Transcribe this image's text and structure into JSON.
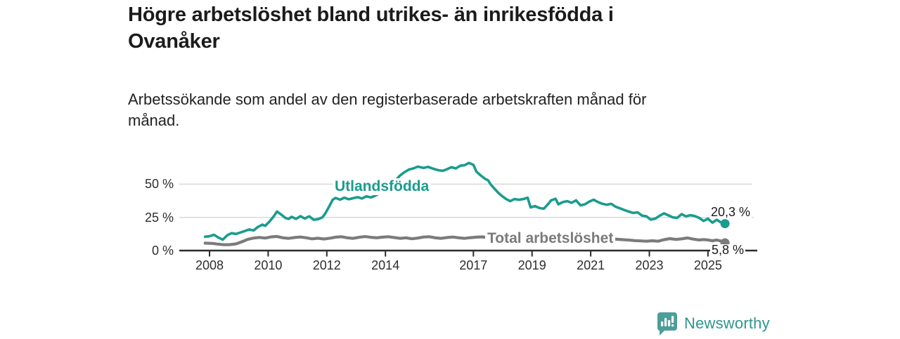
{
  "header": {
    "title_lines": [
      "Högre arbetslöshet bland utrikes- än inrikesfödda i",
      "Ovanåker"
    ],
    "subtitle_lines": [
      "Arbetssökande som andel av den registerbaserade arbetskraften månad för",
      "månad."
    ]
  },
  "footer": {
    "brand": "Newsworthy",
    "brand_color": "#2E968E",
    "icon": "newsworthy-chart-bubble-icon",
    "icon_color": "#4C9E98"
  },
  "chart_data": {
    "type": "line",
    "title": "Högre arbetslöshet bland utrikes- än inrikesfödda i Ovanåker",
    "subtitle": "Arbetssökande som andel av den registerbaserade arbetskraften månad för månad.",
    "unit": "%",
    "grid": "horizontal",
    "legend_position": "inline-labels",
    "xlim": [
      2007.85,
      2025.75
    ],
    "ylim": [
      0,
      68
    ],
    "y_ticks": [
      {
        "value": 50,
        "label": "50 %"
      },
      {
        "value": 25,
        "label": "25 %"
      },
      {
        "value": 0,
        "label": "0 %"
      }
    ],
    "x_ticks": [
      {
        "year": 2008,
        "label": "2008"
      },
      {
        "year": 2010,
        "label": "2010"
      },
      {
        "year": 2012,
        "label": "2012"
      },
      {
        "year": 2014,
        "label": "2014"
      },
      {
        "year": 2017,
        "label": "2017"
      },
      {
        "year": 2019,
        "label": "2019"
      },
      {
        "year": 2021,
        "label": "2021"
      },
      {
        "year": 2023,
        "label": "2023"
      },
      {
        "year": 2025,
        "label": "2025"
      }
    ],
    "series": [
      {
        "name": "Utlandsfödda",
        "color": "#1A9C8E",
        "end_value": 20.3,
        "end_label": "20,3 %",
        "points": [
          [
            2007.85,
            10.4
          ],
          [
            2008.0,
            10.8
          ],
          [
            2008.15,
            11.9
          ],
          [
            2008.3,
            9.8
          ],
          [
            2008.45,
            8.2
          ],
          [
            2008.6,
            11.4
          ],
          [
            2008.75,
            13.1
          ],
          [
            2008.9,
            12.5
          ],
          [
            2009.05,
            13.6
          ],
          [
            2009.2,
            14.7
          ],
          [
            2009.35,
            15.9
          ],
          [
            2009.5,
            15.1
          ],
          [
            2009.65,
            17.8
          ],
          [
            2009.8,
            19.5
          ],
          [
            2009.9,
            18.6
          ],
          [
            2010.05,
            22.0
          ],
          [
            2010.2,
            26.0
          ],
          [
            2010.3,
            29.4
          ],
          [
            2010.45,
            27.0
          ],
          [
            2010.6,
            24.4
          ],
          [
            2010.7,
            23.8
          ],
          [
            2010.8,
            25.4
          ],
          [
            2010.95,
            23.8
          ],
          [
            2011.1,
            25.9
          ],
          [
            2011.25,
            24.1
          ],
          [
            2011.4,
            25.8
          ],
          [
            2011.55,
            23.2
          ],
          [
            2011.7,
            23.6
          ],
          [
            2011.85,
            25.0
          ],
          [
            2011.95,
            28.0
          ],
          [
            2012.1,
            34.0
          ],
          [
            2012.2,
            38.2
          ],
          [
            2012.3,
            39.6
          ],
          [
            2012.45,
            38.3
          ],
          [
            2012.6,
            39.8
          ],
          [
            2012.75,
            38.6
          ],
          [
            2012.9,
            39.4
          ],
          [
            2013.05,
            40.2
          ],
          [
            2013.2,
            39.2
          ],
          [
            2013.35,
            40.8
          ],
          [
            2013.5,
            40.0
          ],
          [
            2013.65,
            41.3
          ],
          [
            2013.85,
            43.5
          ],
          [
            2014.0,
            46.5
          ],
          [
            2014.2,
            50.5
          ],
          [
            2014.35,
            53.0
          ],
          [
            2014.5,
            56.5
          ],
          [
            2014.65,
            59.0
          ],
          [
            2014.8,
            61.0
          ],
          [
            2014.95,
            61.8
          ],
          [
            2015.1,
            63.2
          ],
          [
            2015.3,
            62.2
          ],
          [
            2015.45,
            63.0
          ],
          [
            2015.6,
            61.8
          ],
          [
            2015.8,
            60.5
          ],
          [
            2015.95,
            60.0
          ],
          [
            2016.1,
            61.2
          ],
          [
            2016.25,
            62.8
          ],
          [
            2016.4,
            61.8
          ],
          [
            2016.55,
            63.8
          ],
          [
            2016.7,
            64.3
          ],
          [
            2016.85,
            66.0
          ],
          [
            2017.0,
            64.5
          ],
          [
            2017.1,
            59.5
          ],
          [
            2017.25,
            56.5
          ],
          [
            2017.4,
            54.0
          ],
          [
            2017.5,
            52.8
          ],
          [
            2017.6,
            49.5
          ],
          [
            2017.7,
            47.0
          ],
          [
            2017.85,
            43.5
          ],
          [
            2017.95,
            41.5
          ],
          [
            2018.1,
            39.0
          ],
          [
            2018.25,
            37.2
          ],
          [
            2018.4,
            38.8
          ],
          [
            2018.55,
            38.2
          ],
          [
            2018.7,
            38.8
          ],
          [
            2018.85,
            39.8
          ],
          [
            2018.95,
            32.5
          ],
          [
            2019.1,
            33.5
          ],
          [
            2019.25,
            32.0
          ],
          [
            2019.4,
            31.5
          ],
          [
            2019.55,
            35.0
          ],
          [
            2019.65,
            37.8
          ],
          [
            2019.8,
            39.0
          ],
          [
            2019.9,
            34.8
          ],
          [
            2020.05,
            36.5
          ],
          [
            2020.2,
            37.2
          ],
          [
            2020.35,
            36.0
          ],
          [
            2020.5,
            37.8
          ],
          [
            2020.65,
            34.0
          ],
          [
            2020.8,
            34.8
          ],
          [
            2020.95,
            36.8
          ],
          [
            2021.1,
            38.3
          ],
          [
            2021.25,
            36.5
          ],
          [
            2021.4,
            35.2
          ],
          [
            2021.55,
            34.5
          ],
          [
            2021.7,
            35.2
          ],
          [
            2021.85,
            33.0
          ],
          [
            2022.0,
            31.8
          ],
          [
            2022.15,
            30.5
          ],
          [
            2022.3,
            29.3
          ],
          [
            2022.45,
            28.3
          ],
          [
            2022.6,
            28.8
          ],
          [
            2022.75,
            26.3
          ],
          [
            2022.9,
            25.8
          ],
          [
            2023.05,
            23.3
          ],
          [
            2023.2,
            24.0
          ],
          [
            2023.35,
            26.2
          ],
          [
            2023.5,
            28.0
          ],
          [
            2023.65,
            26.5
          ],
          [
            2023.8,
            25.0
          ],
          [
            2023.95,
            24.6
          ],
          [
            2024.1,
            27.4
          ],
          [
            2024.25,
            25.8
          ],
          [
            2024.4,
            26.6
          ],
          [
            2024.55,
            26.0
          ],
          [
            2024.7,
            24.6
          ],
          [
            2024.85,
            22.3
          ],
          [
            2025.0,
            24.0
          ],
          [
            2025.15,
            21.0
          ],
          [
            2025.3,
            23.2
          ],
          [
            2025.42,
            21.5
          ],
          [
            2025.58,
            20.3
          ]
        ]
      },
      {
        "name": "Total arbetslöshet",
        "color": "#7B7B7B",
        "end_value": 5.8,
        "end_label": "5,8 %",
        "points": [
          [
            2007.85,
            5.6
          ],
          [
            2008.1,
            5.4
          ],
          [
            2008.3,
            4.8
          ],
          [
            2008.5,
            4.4
          ],
          [
            2008.7,
            4.5
          ],
          [
            2008.9,
            5.0
          ],
          [
            2009.1,
            6.6
          ],
          [
            2009.3,
            8.4
          ],
          [
            2009.5,
            9.4
          ],
          [
            2009.7,
            9.9
          ],
          [
            2009.9,
            9.4
          ],
          [
            2010.1,
            10.3
          ],
          [
            2010.3,
            10.6
          ],
          [
            2010.5,
            9.6
          ],
          [
            2010.7,
            9.2
          ],
          [
            2010.9,
            9.8
          ],
          [
            2011.1,
            10.2
          ],
          [
            2011.3,
            9.6
          ],
          [
            2011.5,
            8.8
          ],
          [
            2011.7,
            9.3
          ],
          [
            2011.9,
            8.7
          ],
          [
            2012.1,
            9.3
          ],
          [
            2012.3,
            10.1
          ],
          [
            2012.5,
            10.4
          ],
          [
            2012.7,
            9.6
          ],
          [
            2012.9,
            9.2
          ],
          [
            2013.1,
            10.0
          ],
          [
            2013.3,
            10.5
          ],
          [
            2013.5,
            10.0
          ],
          [
            2013.7,
            9.6
          ],
          [
            2013.9,
            10.1
          ],
          [
            2014.1,
            10.4
          ],
          [
            2014.3,
            9.8
          ],
          [
            2014.5,
            9.2
          ],
          [
            2014.7,
            9.6
          ],
          [
            2014.9,
            8.9
          ],
          [
            2015.1,
            9.4
          ],
          [
            2015.3,
            10.2
          ],
          [
            2015.5,
            10.4
          ],
          [
            2015.7,
            9.6
          ],
          [
            2015.9,
            9.2
          ],
          [
            2016.1,
            9.8
          ],
          [
            2016.3,
            10.2
          ],
          [
            2016.5,
            9.6
          ],
          [
            2016.7,
            9.2
          ],
          [
            2016.9,
            9.7
          ],
          [
            2017.1,
            10.1
          ],
          [
            2017.3,
            10.3
          ],
          [
            2017.5,
            9.8
          ],
          [
            2017.7,
            9.0
          ],
          [
            2017.9,
            8.5
          ],
          [
            2018.1,
            8.2
          ],
          [
            2018.3,
            8.0
          ],
          [
            2018.5,
            8.3
          ],
          [
            2018.7,
            8.0
          ],
          [
            2018.9,
            8.4
          ],
          [
            2019.1,
            7.8
          ],
          [
            2019.3,
            8.0
          ],
          [
            2019.5,
            8.4
          ],
          [
            2019.7,
            8.8
          ],
          [
            2019.9,
            8.4
          ],
          [
            2020.1,
            8.7
          ],
          [
            2020.3,
            9.1
          ],
          [
            2020.5,
            9.3
          ],
          [
            2020.7,
            8.9
          ],
          [
            2020.9,
            9.2
          ],
          [
            2021.1,
            9.4
          ],
          [
            2021.3,
            9.0
          ],
          [
            2021.5,
            8.7
          ],
          [
            2021.7,
            8.9
          ],
          [
            2021.9,
            8.5
          ],
          [
            2022.1,
            8.2
          ],
          [
            2022.3,
            7.9
          ],
          [
            2022.5,
            7.5
          ],
          [
            2022.7,
            7.3
          ],
          [
            2022.9,
            7.0
          ],
          [
            2023.1,
            7.4
          ],
          [
            2023.3,
            7.0
          ],
          [
            2023.5,
            8.2
          ],
          [
            2023.7,
            9.0
          ],
          [
            2023.9,
            8.4
          ],
          [
            2024.1,
            8.8
          ],
          [
            2024.3,
            9.5
          ],
          [
            2024.5,
            8.6
          ],
          [
            2024.7,
            8.0
          ],
          [
            2024.85,
            8.3
          ],
          [
            2025.0,
            8.0
          ],
          [
            2025.15,
            7.4
          ],
          [
            2025.3,
            7.9
          ],
          [
            2025.45,
            7.2
          ],
          [
            2025.58,
            5.8
          ]
        ]
      }
    ]
  }
}
